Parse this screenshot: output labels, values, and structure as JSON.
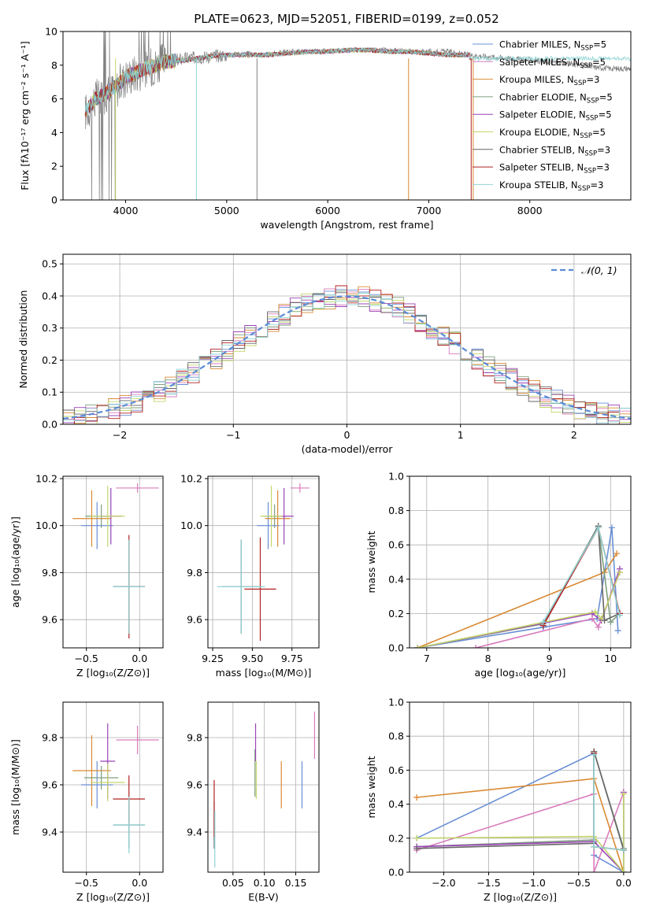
{
  "figure": {
    "title": "PLATE=0623, MJD=52051, FIBERID=0199, z=0.052"
  },
  "colors": {
    "chabrier_miles": "#6a8fd5",
    "salpeter_miles": "#d97cbd",
    "kroupa_miles": "#d98a33",
    "chabrier_elodie": "#7f9f7f",
    "salpeter_elodie": "#9b44b8",
    "kroupa_elodie": "#c3d66a",
    "chabrier_stelib": "#666666",
    "salpeter_stelib": "#b22222",
    "kroupa_stelib": "#8fd3d3",
    "observed": "#808080",
    "gaussian": "#5b8bd6"
  },
  "chart_data": [
    {
      "id": "spectrum",
      "type": "line",
      "title": "PLATE=0623, MJD=52051, FIBERID=0199, z=0.052",
      "xlabel": "wavelength [Angstrom, rest frame]",
      "ylabel": "Flux [fλ10⁻¹⁷ erg cm⁻² s⁻¹ A⁻¹]",
      "xlim": [
        3380,
        9000
      ],
      "ylim": [
        0,
        10
      ],
      "xticks": [
        4000,
        5000,
        6000,
        7000,
        8000
      ],
      "yticks": [
        0,
        2,
        4,
        6,
        8,
        10
      ],
      "grid": false,
      "legend_position": "top-right",
      "legend": [
        {
          "label": "Chabrier MILES, N",
          "sub": "SSP",
          "tail": "=5",
          "color_key": "chabrier_miles"
        },
        {
          "label": "Salpeter MILES, N",
          "sub": "SSP",
          "tail": "=5",
          "color_key": "salpeter_miles"
        },
        {
          "label": "Kroupa MILES, N",
          "sub": "SSP",
          "tail": "=3",
          "color_key": "kroupa_miles"
        },
        {
          "label": "Chabrier ELODIE, N",
          "sub": "SSP",
          "tail": "=5",
          "color_key": "chabrier_elodie"
        },
        {
          "label": "Salpeter ELODIE, N",
          "sub": "SSP",
          "tail": "=5",
          "color_key": "salpeter_elodie"
        },
        {
          "label": "Kroupa ELODIE, N",
          "sub": "SSP",
          "tail": "=5",
          "color_key": "kroupa_elodie"
        },
        {
          "label": "Chabrier STELIB, N",
          "sub": "SSP",
          "tail": "=3",
          "color_key": "chabrier_stelib"
        },
        {
          "label": "Salpeter STELIB, N",
          "sub": "SSP",
          "tail": "=3",
          "color_key": "salpeter_stelib"
        },
        {
          "label": "Kroupa STELIB, N",
          "sub": "SSP",
          "tail": "=3",
          "color_key": "kroupa_stelib"
        }
      ],
      "observed_x": [
        3600,
        3700,
        3800,
        3900,
        4000,
        4200,
        4400,
        4600,
        4800,
        5000,
        5200,
        5400,
        5600,
        5800,
        6000,
        6200,
        6400,
        6600,
        6800,
        7000,
        7200,
        7400,
        7600,
        7800,
        8000,
        8200,
        8400,
        8600,
        8800,
        9000
      ],
      "observed_y": [
        5.2,
        6.0,
        6.3,
        6.6,
        7.3,
        7.8,
        8.2,
        8.4,
        8.5,
        8.6,
        8.7,
        8.6,
        8.8,
        8.8,
        8.8,
        8.9,
        8.9,
        8.9,
        8.8,
        8.8,
        8.8,
        8.6,
        8.5,
        8.4,
        8.3,
        8.2,
        8.1,
        7.9,
        7.8,
        7.8
      ],
      "model_x": [
        3600,
        3700,
        3800,
        3900,
        4000,
        4200,
        4400,
        4600,
        4800,
        5000,
        5200,
        5400,
        5600,
        5800,
        6000,
        6200,
        6400,
        6600,
        6800,
        7000,
        7200,
        7400
      ],
      "model_y": [
        5.2,
        6.0,
        6.3,
        6.7,
        7.3,
        7.8,
        8.2,
        8.3,
        8.5,
        8.6,
        8.6,
        8.6,
        8.7,
        8.8,
        8.8,
        8.9,
        8.9,
        8.8,
        8.8,
        8.7,
        8.6,
        8.6
      ]
    },
    {
      "id": "residuals",
      "type": "line",
      "xlabel": "(data-model)/error",
      "ylabel": "Normed distribution",
      "xlim": [
        -2.5,
        2.5
      ],
      "ylim": [
        0,
        0.53
      ],
      "xticks": [
        -2,
        -1,
        0,
        1,
        2
      ],
      "xtick_labels": [
        "−2",
        "−1",
        "0",
        "1",
        "2"
      ],
      "yticks": [
        0,
        0.1,
        0.2,
        0.3,
        0.4,
        0.5
      ],
      "ytick_labels": [
        "0.0",
        "0.1",
        "0.2",
        "0.3",
        "0.4",
        "0.5"
      ],
      "grid": true,
      "legend_position": "top-right",
      "legend_label": "𝒩(0, 1)",
      "bin_width": 0.1
    },
    {
      "id": "age-vs-z",
      "type": "scatter",
      "xlabel": "Z [log₁₀(Z/Z⊙)]",
      "ylabel": "age  [log₁₀(age/yr)]",
      "xlim": [
        -0.72,
        0.22
      ],
      "ylim": [
        9.48,
        10.21
      ],
      "xticks": [
        -0.5,
        0.0
      ],
      "xtick_labels": [
        "−0.5",
        "0.0"
      ],
      "yticks": [
        9.6,
        9.8,
        10.0,
        10.2
      ],
      "ytick_labels": [
        "9.6",
        "9.8",
        "10.0",
        "10.2"
      ],
      "grid": true,
      "points": [
        {
          "color_key": "chabrier_miles",
          "x": -0.4,
          "y": 10.0,
          "xerr": 0.15,
          "yerr": 0.1
        },
        {
          "color_key": "salpeter_miles",
          "x": -0.02,
          "y": 10.16,
          "xerr": 0.2,
          "yerr": 0.02
        },
        {
          "color_key": "kroupa_miles",
          "x": -0.45,
          "y": 10.03,
          "xerr": 0.18,
          "yerr": 0.12
        },
        {
          "color_key": "chabrier_elodie",
          "x": -0.36,
          "y": 10.04,
          "xerr": 0.15,
          "yerr": 0.05
        },
        {
          "color_key": "salpeter_elodie",
          "x": -0.27,
          "y": 10.04,
          "xerr": 0.1,
          "yerr": 0.12
        },
        {
          "color_key": "kroupa_elodie",
          "x": -0.3,
          "y": 10.04,
          "xerr": 0.16,
          "yerr": 0.13
        },
        {
          "color_key": "chabrier_stelib",
          "x": -0.1,
          "y": 9.74,
          "xerr": 0.15,
          "yerr": 0.2
        },
        {
          "color_key": "salpeter_stelib",
          "x": -0.1,
          "y": 9.74,
          "xerr": 0.15,
          "yerr": 0.22
        },
        {
          "color_key": "kroupa_stelib",
          "x": -0.1,
          "y": 9.74,
          "xerr": 0.15,
          "yerr": 0.2
        }
      ]
    },
    {
      "id": "age-vs-mass",
      "type": "scatter",
      "xlabel": "mass [log₁₀(M/M⊙)]",
      "ylabel": "",
      "xlim": [
        9.22,
        9.92
      ],
      "ylim": [
        9.48,
        10.21
      ],
      "xticks": [
        9.25,
        9.5,
        9.75
      ],
      "xtick_labels": [
        "9.25",
        "9.50",
        "9.75"
      ],
      "yticks": [
        9.6,
        9.8,
        10.0,
        10.2
      ],
      "ytick_labels": [
        "9.6",
        "9.8",
        "10.0",
        "10.2"
      ],
      "grid": true,
      "points": [
        {
          "color_key": "chabrier_miles",
          "x": 9.6,
          "y": 10.0,
          "xerr": 0.07,
          "yerr": 0.1
        },
        {
          "color_key": "salpeter_miles",
          "x": 9.8,
          "y": 10.16,
          "xerr": 0.06,
          "yerr": 0.02
        },
        {
          "color_key": "kroupa_miles",
          "x": 9.66,
          "y": 10.03,
          "xerr": 0.08,
          "yerr": 0.12
        },
        {
          "color_key": "chabrier_elodie",
          "x": 9.64,
          "y": 10.04,
          "xerr": 0.07,
          "yerr": 0.05
        },
        {
          "color_key": "salpeter_elodie",
          "x": 9.7,
          "y": 10.04,
          "xerr": 0.06,
          "yerr": 0.12
        },
        {
          "color_key": "kroupa_elodie",
          "x": 9.62,
          "y": 10.04,
          "xerr": 0.07,
          "yerr": 0.13
        },
        {
          "color_key": "chabrier_stelib",
          "x": 9.43,
          "y": 9.74,
          "xerr": 0.12,
          "yerr": 0.2
        },
        {
          "color_key": "salpeter_stelib",
          "x": 9.55,
          "y": 9.73,
          "xerr": 0.1,
          "yerr": 0.22
        },
        {
          "color_key": "kroupa_stelib",
          "x": 9.43,
          "y": 9.74,
          "xerr": 0.15,
          "yerr": 0.2
        }
      ]
    },
    {
      "id": "weight-vs-age",
      "type": "line",
      "xlabel": "age  [log₁₀(age/yr)]",
      "ylabel": "mass weight",
      "xlim": [
        6.72,
        10.33
      ],
      "ylim": [
        0,
        1
      ],
      "xticks": [
        7,
        8,
        9,
        10
      ],
      "xtick_labels": [
        "7",
        "8",
        "9",
        "10"
      ],
      "yticks": [
        0,
        0.2,
        0.4,
        0.6,
        0.8,
        1.0
      ],
      "ytick_labels": [
        "0.0",
        "0.2",
        "0.4",
        "0.6",
        "0.8",
        "1.0"
      ],
      "grid": true,
      "series": [
        {
          "color_key": "chabrier_miles",
          "x": [
            6.85,
            8.9,
            9.78,
            10.02,
            10.12
          ],
          "y": [
            0.0,
            0.12,
            0.17,
            0.7,
            0.1
          ]
        },
        {
          "color_key": "salpeter_miles",
          "x": [
            7.8,
            9.7,
            9.8,
            10.15
          ],
          "y": [
            0.0,
            0.17,
            0.12,
            0.44
          ]
        },
        {
          "color_key": "kroupa_miles",
          "x": [
            6.85,
            9.9,
            10.1
          ],
          "y": [
            0.0,
            0.44,
            0.55
          ]
        },
        {
          "color_key": "chabrier_elodie",
          "x": [
            6.85,
            8.9,
            9.8,
            10.0,
            10.15
          ],
          "y": [
            0.0,
            0.14,
            0.71,
            0.15,
            0.2
          ]
        },
        {
          "color_key": "salpeter_elodie",
          "x": [
            6.85,
            9.7,
            9.85,
            10.15
          ],
          "y": [
            0.0,
            0.2,
            0.16,
            0.46
          ]
        },
        {
          "color_key": "kroupa_elodie",
          "x": [
            6.85,
            9.75,
            9.85,
            10.15
          ],
          "y": [
            0.0,
            0.21,
            0.17,
            0.44
          ]
        },
        {
          "color_key": "chabrier_stelib",
          "x": [
            8.9,
            9.8,
            9.9,
            10.15
          ],
          "y": [
            0.13,
            0.71,
            0.16,
            0.2
          ]
        },
        {
          "color_key": "salpeter_stelib",
          "x": [
            8.9,
            9.8,
            10.15
          ],
          "y": [
            0.13,
            0.7,
            0.2
          ]
        },
        {
          "color_key": "kroupa_stelib",
          "x": [
            8.9,
            9.8,
            10.15
          ],
          "y": [
            0.15,
            0.7,
            0.19
          ]
        }
      ]
    },
    {
      "id": "mass-vs-z",
      "type": "scatter",
      "xlabel": "Z [log₁₀(Z/Z⊙)]",
      "ylabel": "mass [log₁₀(M/M⊙)]",
      "xlim": [
        -0.72,
        0.22
      ],
      "ylim": [
        9.23,
        9.95
      ],
      "xticks": [
        -0.5,
        0.0
      ],
      "xtick_labels": [
        "−0.5",
        "0.0"
      ],
      "yticks": [
        9.4,
        9.6,
        9.8
      ],
      "ytick_labels": [
        "9.4",
        "9.6",
        "9.8"
      ],
      "grid": true,
      "points": [
        {
          "color_key": "chabrier_miles",
          "x": -0.4,
          "y": 9.6,
          "xerr": 0.15,
          "yerr": 0.1
        },
        {
          "color_key": "salpeter_miles",
          "x": -0.02,
          "y": 9.79,
          "xerr": 0.2,
          "yerr": 0.06
        },
        {
          "color_key": "kroupa_miles",
          "x": -0.45,
          "y": 9.66,
          "xerr": 0.18,
          "yerr": 0.15
        },
        {
          "color_key": "chabrier_elodie",
          "x": -0.36,
          "y": 9.63,
          "xerr": 0.16,
          "yerr": 0.05
        },
        {
          "color_key": "salpeter_elodie",
          "x": -0.3,
          "y": 9.7,
          "xerr": 0.07,
          "yerr": 0.16
        },
        {
          "color_key": "kroupa_elodie",
          "x": -0.3,
          "y": 9.61,
          "xerr": 0.16,
          "yerr": 0.08
        },
        {
          "color_key": "chabrier_stelib",
          "x": -0.1,
          "y": 9.43,
          "xerr": 0.15,
          "yerr": 0.1
        },
        {
          "color_key": "salpeter_stelib",
          "x": -0.1,
          "y": 9.54,
          "xerr": 0.15,
          "yerr": 0.1
        },
        {
          "color_key": "kroupa_stelib",
          "x": -0.1,
          "y": 9.43,
          "xerr": 0.15,
          "yerr": 0.12
        }
      ]
    },
    {
      "id": "mass-vs-ebv",
      "type": "scatter",
      "xlabel": "E(B-V)",
      "ylabel": "",
      "xlim": [
        0.01,
        0.187
      ],
      "ylim": [
        9.23,
        9.95
      ],
      "xticks": [
        0.05,
        0.1,
        0.15
      ],
      "xtick_labels": [
        "0.05",
        "0.10",
        "0.15"
      ],
      "yticks": [
        9.4,
        9.6,
        9.8
      ],
      "ytick_labels": [
        "9.4",
        "9.6",
        "9.8"
      ],
      "grid": true,
      "points": [
        {
          "color_key": "chabrier_miles",
          "x": 0.16,
          "y": 9.6,
          "xerr": 0,
          "yerr": 0.1
        },
        {
          "color_key": "salpeter_miles",
          "x": 0.18,
          "y": 9.81,
          "xerr": 0,
          "yerr": 0.1
        },
        {
          "color_key": "kroupa_miles",
          "x": 0.127,
          "y": 9.6,
          "xerr": 0,
          "yerr": 0.1
        },
        {
          "color_key": "chabrier_elodie",
          "x": 0.085,
          "y": 9.65,
          "xerr": 0,
          "yerr": 0.1
        },
        {
          "color_key": "salpeter_elodie",
          "x": 0.086,
          "y": 9.78,
          "xerr": 0,
          "yerr": 0.08
        },
        {
          "color_key": "kroupa_elodie",
          "x": 0.087,
          "y": 9.62,
          "xerr": 0,
          "yerr": 0.08
        },
        {
          "color_key": "chabrier_stelib",
          "x": 0.02,
          "y": 9.43,
          "xerr": 0,
          "yerr": 0.1
        },
        {
          "color_key": "salpeter_stelib",
          "x": 0.02,
          "y": 9.5,
          "xerr": 0,
          "yerr": 0.12
        },
        {
          "color_key": "kroupa_stelib",
          "x": 0.021,
          "y": 9.37,
          "xerr": 0,
          "yerr": 0.12
        }
      ]
    },
    {
      "id": "weight-vs-z",
      "type": "line",
      "xlabel": "Z [log₁₀(Z/Z⊙)]",
      "ylabel": "mass weight",
      "xlim": [
        -2.38,
        0.08
      ],
      "ylim": [
        0,
        1
      ],
      "xticks": [
        -2.0,
        -1.5,
        -1.0,
        -0.5,
        0.0
      ],
      "xtick_labels": [
        "−2.0",
        "−1.5",
        "−1.0",
        "−0.5",
        "0.0"
      ],
      "yticks": [
        0,
        0.2,
        0.4,
        0.6,
        0.8,
        1.0
      ],
      "ytick_labels": [
        "0.0",
        "0.2",
        "0.4",
        "0.6",
        "0.8",
        "1.0"
      ],
      "grid": true,
      "series": [
        {
          "color_key": "chabrier_miles",
          "x": [
            -2.3,
            -0.33,
            -0.33,
            0.0
          ],
          "y": [
            0.2,
            0.7,
            0.1,
            0.0
          ]
        },
        {
          "color_key": "salpeter_miles",
          "x": [
            -2.3,
            -0.33,
            -0.33,
            0.0
          ],
          "y": [
            0.13,
            0.46,
            0.0,
            0.47
          ]
        },
        {
          "color_key": "kroupa_miles",
          "x": [
            -2.3,
            -0.33,
            0.0
          ],
          "y": [
            0.44,
            0.55,
            0.0
          ]
        },
        {
          "color_key": "chabrier_elodie",
          "x": [
            -2.3,
            -0.33,
            -0.33,
            0.0
          ],
          "y": [
            0.15,
            0.19,
            0.71,
            0.14
          ]
        },
        {
          "color_key": "salpeter_elodie",
          "x": [
            -2.3,
            -0.33,
            0.0,
            0.0
          ],
          "y": [
            0.15,
            0.18,
            0.0,
            0.47
          ]
        },
        {
          "color_key": "kroupa_elodie",
          "x": [
            -2.3,
            -0.33,
            0.0,
            0.0
          ],
          "y": [
            0.2,
            0.21,
            0.0,
            0.46
          ]
        },
        {
          "color_key": "chabrier_stelib",
          "x": [
            -2.3,
            -0.33,
            -0.33,
            0.0
          ],
          "y": [
            0.14,
            0.17,
            0.71,
            0.13
          ]
        },
        {
          "color_key": "salpeter_stelib",
          "x": [
            -0.33,
            -0.33,
            0.0
          ],
          "y": [
            0.7,
            0.15,
            0.13
          ]
        },
        {
          "color_key": "kroupa_stelib",
          "x": [
            -0.33,
            -0.33,
            0.0
          ],
          "y": [
            0.69,
            0.15,
            0.13
          ]
        }
      ]
    }
  ]
}
